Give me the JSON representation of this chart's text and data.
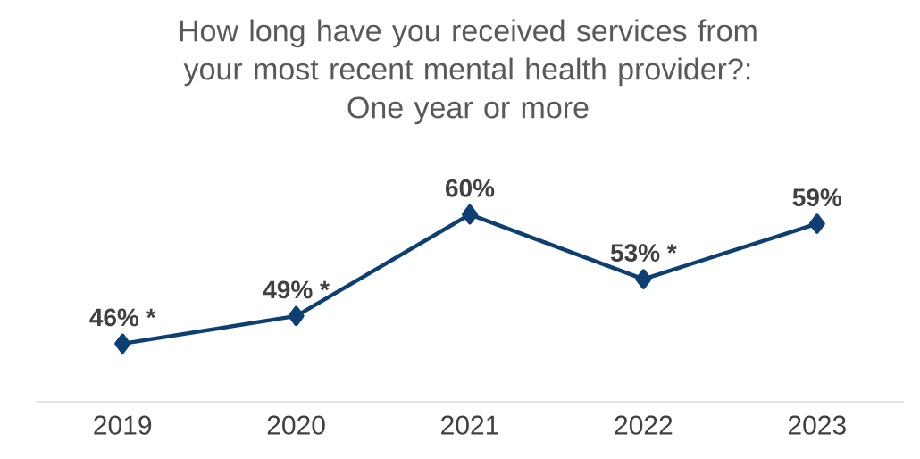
{
  "chart_data": {
    "type": "line",
    "title": "How long have you received services from your most recent mental health provider?:",
    "subtitle": "One year or more",
    "categories": [
      "2019",
      "2020",
      "2021",
      "2022",
      "2023"
    ],
    "values": [
      46,
      49,
      60,
      53,
      59
    ],
    "value_labels": [
      "46% *",
      "49% *",
      "60%",
      "53% *",
      "59%"
    ],
    "color": "#0e3f73",
    "marker": "diamond"
  }
}
